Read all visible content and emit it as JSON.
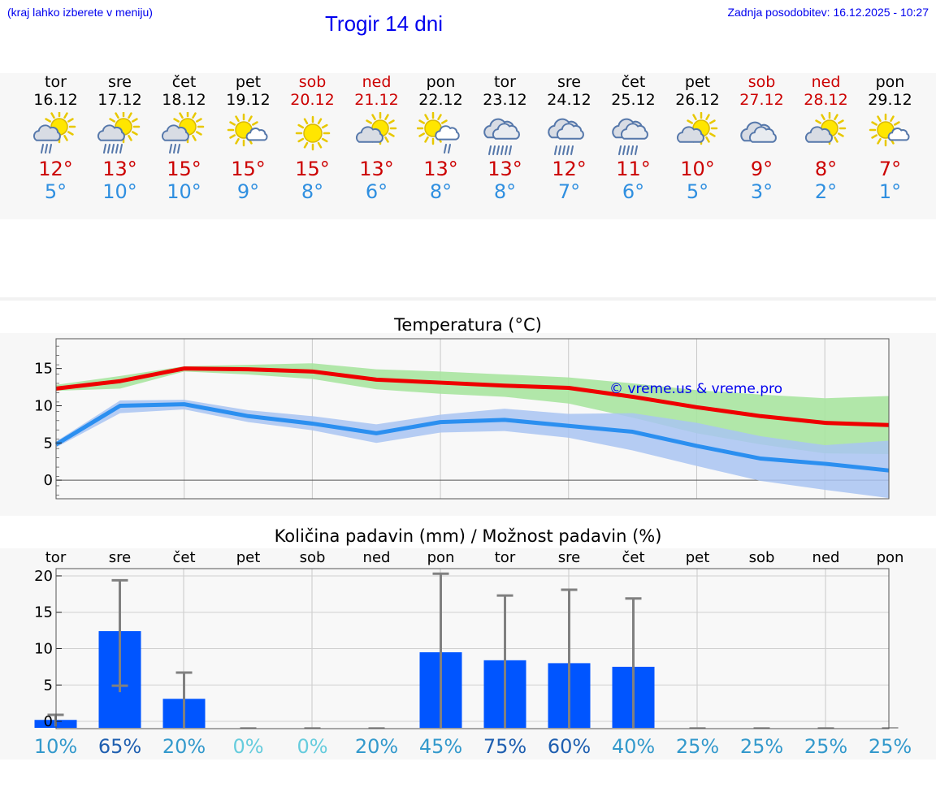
{
  "header": {
    "menu_hint": "(kraj lahko izberete v meniju)",
    "title": "Trogir 14 dni",
    "updated": "Zadnja posodobitev: 16.12.2025 - 10:27"
  },
  "days": [
    {
      "name": "tor",
      "date": "16.12",
      "weekend": false,
      "icon": "partly-sunny-rain-icon",
      "tmax": "12°",
      "tmin": "5°"
    },
    {
      "name": "sre",
      "date": "17.12",
      "weekend": false,
      "icon": "partly-sunny-heavy-rain-icon",
      "tmax": "13°",
      "tmin": "10°"
    },
    {
      "name": "čet",
      "date": "18.12",
      "weekend": false,
      "icon": "partly-sunny-rain-icon",
      "tmax": "15°",
      "tmin": "10°"
    },
    {
      "name": "pet",
      "date": "19.12",
      "weekend": false,
      "icon": "mostly-sunny-icon",
      "tmax": "15°",
      "tmin": "9°"
    },
    {
      "name": "sob",
      "date": "20.12",
      "weekend": true,
      "icon": "sunny-icon",
      "tmax": "15°",
      "tmin": "8°"
    },
    {
      "name": "ned",
      "date": "21.12",
      "weekend": true,
      "icon": "partly-cloudy-icon",
      "tmax": "13°",
      "tmin": "6°"
    },
    {
      "name": "pon",
      "date": "22.12",
      "weekend": false,
      "icon": "sun-cloud-rain-icon",
      "tmax": "13°",
      "tmin": "8°"
    },
    {
      "name": "tor",
      "date": "23.12",
      "weekend": false,
      "icon": "cloudy-heavy-rain-icon",
      "tmax": "13°",
      "tmin": "8°"
    },
    {
      "name": "sre",
      "date": "24.12",
      "weekend": false,
      "icon": "cloudy-rain-icon",
      "tmax": "12°",
      "tmin": "7°"
    },
    {
      "name": "čet",
      "date": "25.12",
      "weekend": false,
      "icon": "cloudy-rain-icon",
      "tmax": "11°",
      "tmin": "6°"
    },
    {
      "name": "pet",
      "date": "26.12",
      "weekend": false,
      "icon": "partly-cloudy-icon",
      "tmax": "10°",
      "tmin": "5°"
    },
    {
      "name": "sob",
      "date": "27.12",
      "weekend": true,
      "icon": "cloudy-icon",
      "tmax": "9°",
      "tmin": "3°"
    },
    {
      "name": "ned",
      "date": "28.12",
      "weekend": true,
      "icon": "partly-cloudy-icon",
      "tmax": "8°",
      "tmin": "2°"
    },
    {
      "name": "pon",
      "date": "29.12",
      "weekend": false,
      "icon": "mostly-sunny-icon",
      "tmax": "7°",
      "tmin": "1°"
    }
  ],
  "colors": {
    "max_line": "#ee0000",
    "max_band": "#a8e4a0",
    "min_line": "#2b8ff0",
    "min_band": "#a9c4f2",
    "bar": "#0055ff",
    "whisker": "#808080",
    "weekend": "#cc0000"
  },
  "chart_data": [
    {
      "type": "line",
      "title": "Temperatura (°C)",
      "watermark": "© vreme.us & vreme.pro",
      "ylim": [
        -2.5,
        19
      ],
      "yticks": [
        0,
        5,
        10,
        15
      ],
      "ytick_labels": [
        "0",
        "5",
        "10",
        "15"
      ],
      "x": [
        0,
        1,
        2,
        3,
        4,
        5,
        6,
        7,
        8,
        9,
        10,
        11,
        12,
        13
      ],
      "series": [
        {
          "name": "max",
          "values": [
            12.3,
            13.3,
            15.0,
            14.9,
            14.6,
            13.5,
            13.1,
            12.7,
            12.4,
            11.2,
            9.8,
            8.6,
            7.7,
            7.4
          ],
          "band_low": [
            12.0,
            12.3,
            14.6,
            14.2,
            13.6,
            12.2,
            11.6,
            11.2,
            10.3,
            8.4,
            6.3,
            4.8,
            3.6,
            3.5
          ],
          "band_high": [
            12.8,
            14.0,
            15.3,
            15.5,
            15.7,
            14.9,
            14.6,
            14.2,
            13.8,
            13.0,
            12.1,
            11.5,
            11.0,
            11.3
          ]
        },
        {
          "name": "min",
          "values": [
            4.8,
            10.0,
            10.2,
            8.6,
            7.6,
            6.3,
            7.8,
            8.1,
            7.3,
            6.5,
            4.6,
            2.9,
            2.2,
            1.3
          ],
          "band_low": [
            4.4,
            9.0,
            9.5,
            7.8,
            6.7,
            5.0,
            6.4,
            6.6,
            5.7,
            4.0,
            1.9,
            -0.1,
            -1.3,
            -2.4
          ],
          "band_high": [
            5.2,
            10.7,
            10.8,
            9.4,
            8.6,
            7.5,
            8.8,
            9.6,
            8.9,
            9.0,
            7.7,
            5.9,
            4.7,
            5.3
          ]
        }
      ]
    },
    {
      "type": "bar",
      "title": "Količina padavin (mm) / Možnost padavin (%)",
      "categories": [
        "tor",
        "sre",
        "čet",
        "pet",
        "sob",
        "ned",
        "pon",
        "tor",
        "sre",
        "čet",
        "pet",
        "sob",
        "ned",
        "pon"
      ],
      "ylim": [
        -1,
        21
      ],
      "yticks": [
        0,
        5,
        10,
        15,
        20
      ],
      "ytick_labels": [
        "0",
        "5",
        "10",
        "15",
        "20"
      ],
      "values": [
        0.2,
        12.4,
        3.1,
        0,
        0,
        0,
        9.5,
        8.4,
        8.0,
        7.5,
        0,
        0,
        0,
        0
      ],
      "err_low": [
        0.2,
        4.9,
        0,
        0,
        0,
        0,
        0,
        0,
        0,
        0,
        0,
        0,
        0,
        0
      ],
      "err_high": [
        0.9,
        19.4,
        6.7,
        0,
        0,
        0,
        20.3,
        17.3,
        18.1,
        16.9,
        0,
        0,
        0,
        0
      ],
      "probabilities": [
        "10%",
        "65%",
        "20%",
        "0%",
        "0%",
        "20%",
        "45%",
        "75%",
        "60%",
        "40%",
        "25%",
        "25%",
        "25%",
        "25%"
      ],
      "prob_colors": [
        "#3399cc",
        "#1f5fb0",
        "#3399cc",
        "#66ccdd",
        "#66ccdd",
        "#3399cc",
        "#3399cc",
        "#1f5fb0",
        "#1f5fb0",
        "#3399cc",
        "#3399cc",
        "#3399cc",
        "#3399cc",
        "#3399cc"
      ]
    }
  ]
}
